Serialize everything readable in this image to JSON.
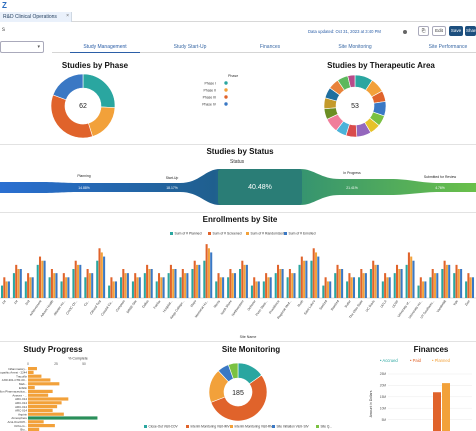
{
  "app": {
    "logo_text": "Z",
    "tab_title": "R&D Clinical Operations",
    "tab_close": "×",
    "updated_text": "Data updated: Oct 31, 2023 at 3:40 PM"
  },
  "header": {
    "left_text": "s",
    "edit_label": "Edit",
    "save_label": "Save",
    "share_label": "Share",
    "icon_label": "⎘"
  },
  "tabs": [
    {
      "label": "Study Management"
    },
    {
      "label": "Study Start-Up"
    },
    {
      "label": "Finances"
    },
    {
      "label": "Site Monitoring"
    },
    {
      "label": "Site Performance"
    }
  ],
  "phase_chart": {
    "title": "Studies by Phase",
    "legend_title": "Phase",
    "center_value": "62",
    "colors": [
      "#2aa6a0",
      "#f2a13a",
      "#e0632b",
      "#3a78c4"
    ],
    "chart_data": {
      "type": "pie",
      "categories": [
        "Phase I",
        "Phase II",
        "Phase III",
        "Phase IV"
      ],
      "values": [
        16,
        12,
        22,
        12
      ]
    }
  },
  "area_chart": {
    "title": "Studies by Therapeutic Area",
    "center_value": "53",
    "colors": [
      "#2aa6a0",
      "#f2a13a",
      "#e0632b",
      "#3a78c4",
      "#7ac142",
      "#e6c229",
      "#9467bd",
      "#d94b4b",
      "#4bb3d9",
      "#f07d9a",
      "#6b8e23",
      "#c49a2b",
      "#1f6f9f",
      "#e8833a",
      "#5cb85c",
      "#b84b8a"
    ],
    "chart_data": {
      "type": "pie",
      "values": [
        5,
        4,
        3,
        4,
        3,
        3,
        4,
        3,
        3,
        4,
        3,
        3,
        3,
        3,
        3,
        2
      ]
    }
  },
  "status_chart": {
    "title": "Studies by Status",
    "subtitle": "Status",
    "labels": [
      "Planning",
      "Start-Up",
      "Enrolling",
      "In Progress",
      "Submitted for Review"
    ],
    "values": [
      "14.88%",
      "18.17%",
      "40.48%",
      "21.41%",
      "4.76%"
    ],
    "chart_data": {
      "type": "area",
      "categories": [
        "Planning",
        "Start-Up",
        "Enrolling",
        "In Progress",
        "Submitted for Review"
      ],
      "values": [
        14.88,
        18.17,
        40.48,
        21.41,
        4.76
      ]
    }
  },
  "enrollment_chart": {
    "title": "Enrollments by Site",
    "xlabel": "Site Name",
    "legend": [
      "Sum of # Planned",
      "Sum of # Screened",
      "Sum of # Randomized",
      "Sum of # Enrolled"
    ],
    "colors": [
      "#2aa6a0",
      "#e0632b",
      "#f2a13a",
      "#3a78c4"
    ],
    "site_labels": [
      "1st",
      "1st",
      "2nd",
      "Achievement",
      "Advent Health",
      "Atlantic Ho...",
      "CHOC Ch...",
      "Ca...",
      "Clinical Test",
      "Coastal Ca...",
      "Compass",
      "DRBE Site",
      "Dallas",
      "Fairfax",
      "Hospital...",
      "Kings College...",
      "Mayo",
      "Memorial Ho...",
      "Mercy",
      "North Shore",
      "Northwestern",
      "Ochsner",
      "Penn State...",
      "Providence",
      "Regional Med...",
      "Rush",
      "Saint Luke's",
      "Sanford",
      "Stanford",
      "Sutter",
      "The Ohio State",
      "UC Davis",
      "UCLA",
      "UCSF",
      "University of...",
      "University Ho...",
      "UT Southwes...",
      "Vanderbilt",
      "Yale",
      "Zion"
    ],
    "chart_data": {
      "type": "bar",
      "series": [
        {
          "name": "Sum of # Planned",
          "values": [
            3,
            6,
            4,
            8,
            5,
            4,
            7,
            5,
            9,
            3,
            5,
            4,
            6,
            4,
            6,
            5,
            7,
            9,
            4,
            5,
            7,
            3,
            4,
            6,
            5,
            8,
            9,
            3,
            6,
            4,
            5,
            7,
            4,
            6,
            8,
            3,
            5,
            7,
            6,
            4
          ]
        },
        {
          "name": "Sum of # Screened",
          "values": [
            5,
            8,
            6,
            10,
            7,
            6,
            9,
            7,
            12,
            5,
            7,
            6,
            8,
            6,
            8,
            7,
            9,
            13,
            6,
            7,
            9,
            5,
            6,
            8,
            7,
            10,
            12,
            5,
            8,
            6,
            7,
            9,
            6,
            8,
            11,
            5,
            7,
            9,
            8,
            6
          ]
        },
        {
          "name": "Sum of # Randomized",
          "values": [
            4,
            7,
            5,
            9,
            6,
            5,
            8,
            6,
            11,
            4,
            6,
            5,
            7,
            5,
            7,
            6,
            8,
            12,
            5,
            6,
            8,
            4,
            5,
            7,
            6,
            9,
            11,
            4,
            7,
            5,
            6,
            8,
            5,
            7,
            10,
            4,
            6,
            8,
            7,
            5
          ]
        },
        {
          "name": "Sum of # Enrolled",
          "values": [
            4,
            7,
            5,
            9,
            6,
            5,
            8,
            6,
            10,
            4,
            6,
            5,
            7,
            5,
            7,
            6,
            8,
            11,
            5,
            6,
            8,
            4,
            5,
            7,
            6,
            9,
            10,
            4,
            7,
            5,
            6,
            8,
            5,
            7,
            9,
            4,
            6,
            8,
            7,
            5
          ]
        }
      ]
    }
  },
  "progress_chart": {
    "title": "Study Progress",
    "axis_title": "% Complete",
    "ticks": [
      "0",
      "25",
      "50"
    ],
    "labels": [
      "Inflammatory...",
      "Idiopathic Arrest - 2244",
      "Tracoflix",
      "AXR-301-CTR-00...",
      "Mab...",
      "Erbilin",
      "Allon Pharmaceutica...",
      "Anavex - ...",
      "ARC-014",
      "ARC-014",
      "ARC-014",
      "ARC-014",
      "Aspirin",
      "Atmosphere",
      "Azol-Oral Diff...",
      "Ortho-G...",
      "Bio..."
    ],
    "colors": [
      "#f2a13a",
      "#2a8f5a"
    ],
    "chart_data": {
      "type": "bar",
      "categories": [
        "Inflammatory...",
        "Idiopathic Arrest - 2244",
        "Tracoflix",
        "AXR-301-CTR-00...",
        "Mab...",
        "Erbilin",
        "Allon Pharmaceutica...",
        "Anavex - ...",
        "ARC-014",
        "ARC-014",
        "ARC-014",
        "ARC-014",
        "Aspirin",
        "Atmosphere",
        "Azol-Oral Diff...",
        "Ortho-G...",
        "Bio..."
      ],
      "values": [
        8,
        5,
        12,
        20,
        28,
        6,
        22,
        18,
        36,
        30,
        26,
        22,
        32,
        62,
        14,
        24,
        10
      ],
      "xlim": [
        0,
        75
      ]
    }
  },
  "monitoring_chart": {
    "title": "Site Monitoring",
    "center_value": "185",
    "legend": [
      "Close-Out Visit-COV",
      "Interim Monitoring Visit-IMV",
      "Interim Monitoring Visit-RMV",
      "Site Initiation Visit- SIV",
      "Site Q..."
    ],
    "colors": [
      "#2aa6a0",
      "#e0632b",
      "#f2a13a",
      "#3a78c4",
      "#7ac142"
    ],
    "chart_data": {
      "type": "pie",
      "categories": [
        "Close-Out Visit-COV",
        "Interim Monitoring Visit-IMV",
        "Interim Monitoring Visit-RMV",
        "Site Initiation Visit- SIV",
        "Site Q..."
      ],
      "values": [
        28,
        100,
        35,
        12,
        10
      ]
    }
  },
  "finance_chart": {
    "title": "Finances",
    "legend": [
      "Accrued",
      "Paid",
      "Planned"
    ],
    "colors": [
      "#2aa6a0",
      "#e0632b",
      "#f2a13a"
    ],
    "ylabel": "Amount in Dollars",
    "ticks": [
      "25M",
      "20M",
      "15M",
      "10M",
      "5M"
    ],
    "chart_data": {
      "type": "bar",
      "categories": [
        ""
      ],
      "series": [
        {
          "name": "Accrued",
          "values": [
            0
          ]
        },
        {
          "name": "Paid",
          "values": [
            17
          ]
        },
        {
          "name": "Planned",
          "values": [
            21
          ]
        }
      ],
      "ylim": [
        0,
        25
      ]
    }
  }
}
